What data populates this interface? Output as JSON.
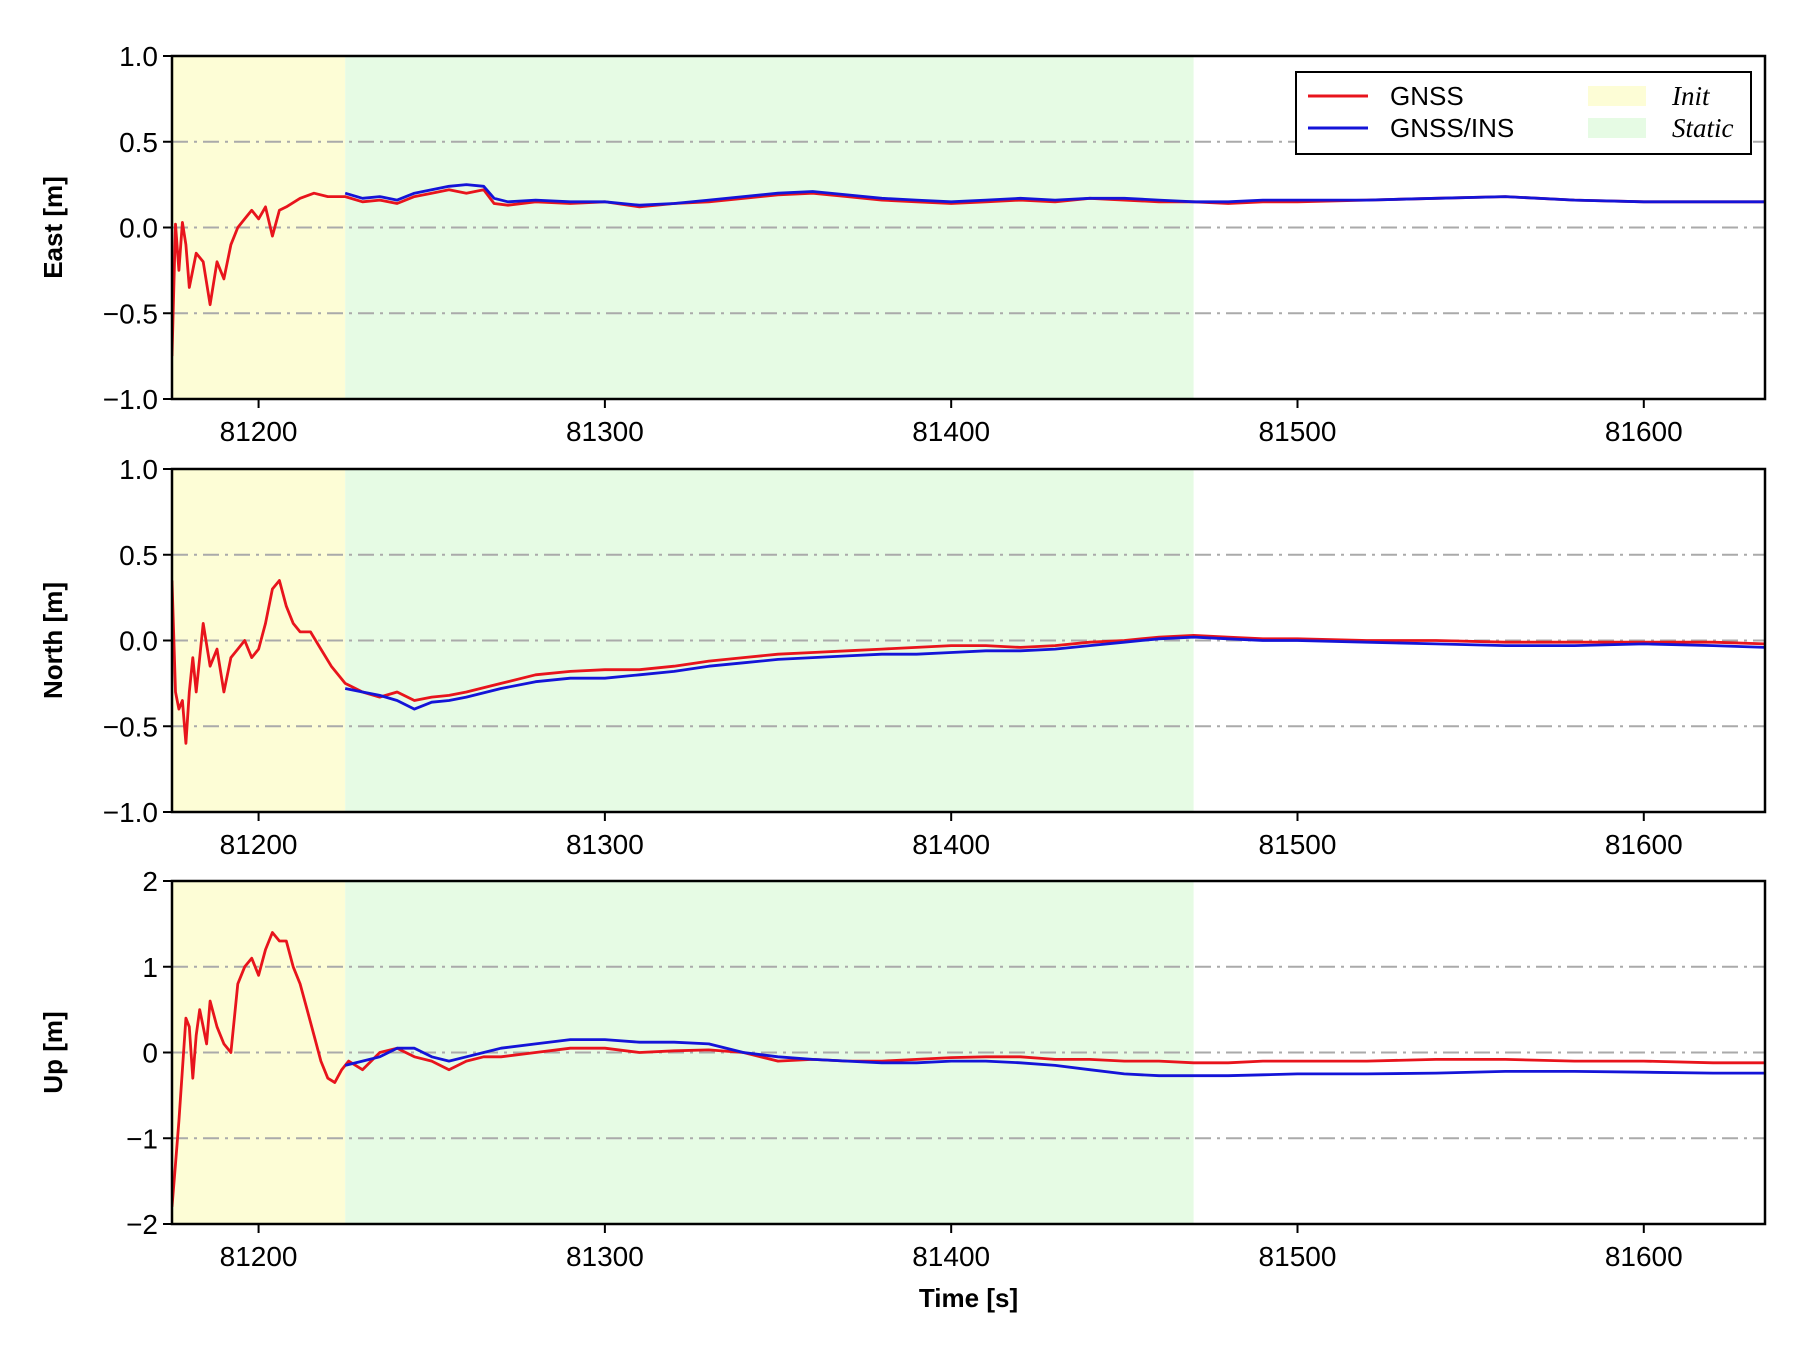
{
  "chart_data": {
    "type": "line",
    "xlabel": "Time [s]",
    "xlim": [
      81175,
      81635
    ],
    "xticks": [
      81200,
      81300,
      81400,
      81500,
      81600
    ],
    "grid": "horizontal dash-dot, gray",
    "legend": {
      "placement": "top-right of first panel",
      "lines": [
        {
          "name": "GNSS",
          "color": "#e8141c"
        },
        {
          "name": "GNSS/INS",
          "color": "#1414d8"
        }
      ],
      "regions": [
        {
          "name": "Init",
          "color": "#fdfdd6"
        },
        {
          "name": "Static",
          "color": "#e6fbe4"
        }
      ]
    },
    "regions": [
      {
        "name": "Init",
        "x": [
          81175,
          81225
        ]
      },
      {
        "name": "Static",
        "x": [
          81225,
          81470
        ]
      }
    ],
    "panels": [
      {
        "ylabel": "East [m]",
        "ylim": [
          -1.0,
          1.0
        ],
        "yticks": [
          -1.0,
          -0.5,
          0.0,
          0.5,
          1.0
        ],
        "ytick_labels": [
          "−1.0",
          "−0.5",
          "0.0",
          "0.5",
          "1.0"
        ],
        "series": [
          {
            "name": "GNSS",
            "color": "#e8141c",
            "x": [
              81175,
              81176,
              81177,
              81178,
              81179,
              81180,
              81182,
              81184,
              81186,
              81188,
              81190,
              81192,
              81194,
              81196,
              81198,
              81200,
              81202,
              81204,
              81206,
              81208,
              81212,
              81216,
              81220,
              81225,
              81230,
              81235,
              81240,
              81245,
              81250,
              81255,
              81260,
              81265,
              81268,
              81272,
              81280,
              81290,
              81300,
              81310,
              81320,
              81330,
              81340,
              81350,
              81360,
              81370,
              81380,
              81390,
              81400,
              81410,
              81420,
              81430,
              81440,
              81450,
              81460,
              81470,
              81480,
              81490,
              81500,
              81520,
              81540,
              81560,
              81580,
              81600,
              81620,
              81635
            ],
            "y": [
              -0.75,
              0.02,
              -0.25,
              0.03,
              -0.1,
              -0.35,
              -0.15,
              -0.2,
              -0.45,
              -0.2,
              -0.3,
              -0.1,
              0.0,
              0.05,
              0.1,
              0.05,
              0.12,
              -0.05,
              0.1,
              0.12,
              0.17,
              0.2,
              0.18,
              0.18,
              0.15,
              0.16,
              0.14,
              0.18,
              0.2,
              0.22,
              0.2,
              0.22,
              0.14,
              0.13,
              0.15,
              0.14,
              0.15,
              0.12,
              0.14,
              0.15,
              0.17,
              0.19,
              0.2,
              0.18,
              0.16,
              0.15,
              0.14,
              0.15,
              0.16,
              0.15,
              0.17,
              0.16,
              0.15,
              0.15,
              0.14,
              0.15,
              0.15,
              0.16,
              0.17,
              0.18,
              0.16,
              0.15,
              0.15,
              0.15
            ]
          },
          {
            "name": "GNSS/INS",
            "color": "#1414d8",
            "x": [
              81225,
              81230,
              81235,
              81240,
              81245,
              81250,
              81255,
              81260,
              81265,
              81268,
              81272,
              81280,
              81290,
              81300,
              81310,
              81320,
              81330,
              81340,
              81350,
              81360,
              81370,
              81380,
              81390,
              81400,
              81410,
              81420,
              81430,
              81440,
              81450,
              81460,
              81470,
              81480,
              81490,
              81500,
              81520,
              81540,
              81560,
              81580,
              81600,
              81620,
              81635
            ],
            "y": [
              0.2,
              0.17,
              0.18,
              0.16,
              0.2,
              0.22,
              0.24,
              0.25,
              0.24,
              0.17,
              0.15,
              0.16,
              0.15,
              0.15,
              0.13,
              0.14,
              0.16,
              0.18,
              0.2,
              0.21,
              0.19,
              0.17,
              0.16,
              0.15,
              0.16,
              0.17,
              0.16,
              0.17,
              0.17,
              0.16,
              0.15,
              0.15,
              0.16,
              0.16,
              0.16,
              0.17,
              0.18,
              0.16,
              0.15,
              0.15,
              0.15
            ]
          }
        ]
      },
      {
        "ylabel": "North [m]",
        "ylim": [
          -1.0,
          1.0
        ],
        "yticks": [
          -1.0,
          -0.5,
          0.0,
          0.5,
          1.0
        ],
        "ytick_labels": [
          "−1.0",
          "−0.5",
          "0.0",
          "0.5",
          "1.0"
        ],
        "series": [
          {
            "name": "GNSS",
            "color": "#e8141c",
            "x": [
              81175,
              81176,
              81177,
              81178,
              81179,
              81180,
              81181,
              81182,
              81184,
              81186,
              81188,
              81190,
              81192,
              81194,
              81196,
              81198,
              81200,
              81202,
              81204,
              81206,
              81208,
              81210,
              81212,
              81215,
              81218,
              81221,
              81225,
              81230,
              81235,
              81240,
              81245,
              81250,
              81255,
              81260,
              81270,
              81280,
              81290,
              81300,
              81310,
              81320,
              81330,
              81340,
              81350,
              81360,
              81370,
              81380,
              81390,
              81400,
              81410,
              81420,
              81430,
              81440,
              81450,
              81460,
              81470,
              81480,
              81490,
              81500,
              81520,
              81540,
              81560,
              81580,
              81600,
              81620,
              81635
            ],
            "y": [
              0.35,
              -0.3,
              -0.4,
              -0.35,
              -0.6,
              -0.3,
              -0.1,
              -0.3,
              0.1,
              -0.15,
              -0.05,
              -0.3,
              -0.1,
              -0.05,
              0.0,
              -0.1,
              -0.05,
              0.1,
              0.3,
              0.35,
              0.2,
              0.1,
              0.05,
              0.05,
              -0.05,
              -0.15,
              -0.25,
              -0.3,
              -0.33,
              -0.3,
              -0.35,
              -0.33,
              -0.32,
              -0.3,
              -0.25,
              -0.2,
              -0.18,
              -0.17,
              -0.17,
              -0.15,
              -0.12,
              -0.1,
              -0.08,
              -0.07,
              -0.06,
              -0.05,
              -0.04,
              -0.03,
              -0.03,
              -0.04,
              -0.03,
              -0.01,
              0.0,
              0.02,
              0.03,
              0.02,
              0.01,
              0.01,
              0.0,
              0.0,
              -0.01,
              -0.01,
              -0.01,
              -0.01,
              -0.02
            ]
          },
          {
            "name": "GNSS/INS",
            "color": "#1414d8",
            "x": [
              81225,
              81230,
              81235,
              81240,
              81245,
              81250,
              81255,
              81260,
              81270,
              81280,
              81290,
              81300,
              81310,
              81320,
              81330,
              81340,
              81350,
              81360,
              81370,
              81380,
              81390,
              81400,
              81410,
              81420,
              81430,
              81440,
              81450,
              81460,
              81470,
              81480,
              81490,
              81500,
              81520,
              81540,
              81560,
              81580,
              81600,
              81620,
              81635
            ],
            "y": [
              -0.28,
              -0.3,
              -0.32,
              -0.35,
              -0.4,
              -0.36,
              -0.35,
              -0.33,
              -0.28,
              -0.24,
              -0.22,
              -0.22,
              -0.2,
              -0.18,
              -0.15,
              -0.13,
              -0.11,
              -0.1,
              -0.09,
              -0.08,
              -0.08,
              -0.07,
              -0.06,
              -0.06,
              -0.05,
              -0.03,
              -0.01,
              0.01,
              0.02,
              0.01,
              0.0,
              0.0,
              -0.01,
              -0.02,
              -0.03,
              -0.03,
              -0.02,
              -0.03,
              -0.04
            ]
          }
        ]
      },
      {
        "ylabel": "Up [m]",
        "ylim": [
          -2,
          2
        ],
        "yticks": [
          -2,
          -1,
          0,
          1,
          2
        ],
        "ytick_labels": [
          "−2",
          "−1",
          "0",
          "1",
          "2"
        ],
        "series": [
          {
            "name": "GNSS",
            "color": "#e8141c",
            "x": [
              81175,
              81176,
              81177,
              81178,
              81179,
              81180,
              81181,
              81182,
              81183,
              81184,
              81185,
              81186,
              81188,
              81190,
              81192,
              81194,
              81196,
              81198,
              81200,
              81202,
              81204,
              81206,
              81208,
              81210,
              81212,
              81214,
              81216,
              81218,
              81220,
              81222,
              81224,
              81226,
              81230,
              81235,
              81240,
              81245,
              81250,
              81255,
              81260,
              81265,
              81270,
              81280,
              81290,
              81300,
              81310,
              81320,
              81330,
              81340,
              81350,
              81360,
              81370,
              81380,
              81390,
              81400,
              81410,
              81420,
              81430,
              81440,
              81450,
              81460,
              81470,
              81480,
              81490,
              81500,
              81520,
              81540,
              81560,
              81580,
              81600,
              81620,
              81635
            ],
            "y": [
              -1.8,
              -1.3,
              -0.8,
              -0.2,
              0.4,
              0.3,
              -0.3,
              0.2,
              0.5,
              0.3,
              0.1,
              0.6,
              0.3,
              0.1,
              0.0,
              0.8,
              1.0,
              1.1,
              0.9,
              1.2,
              1.4,
              1.3,
              1.3,
              1.0,
              0.8,
              0.5,
              0.2,
              -0.1,
              -0.3,
              -0.35,
              -0.2,
              -0.1,
              -0.2,
              0.0,
              0.05,
              -0.05,
              -0.1,
              -0.2,
              -0.1,
              -0.05,
              -0.05,
              0.0,
              0.05,
              0.05,
              0.0,
              0.02,
              0.03,
              0.0,
              -0.1,
              -0.08,
              -0.1,
              -0.1,
              -0.08,
              -0.06,
              -0.05,
              -0.05,
              -0.08,
              -0.08,
              -0.1,
              -0.1,
              -0.12,
              -0.12,
              -0.1,
              -0.1,
              -0.1,
              -0.08,
              -0.08,
              -0.1,
              -0.1,
              -0.12,
              -0.12
            ]
          },
          {
            "name": "GNSS/INS",
            "color": "#1414d8",
            "x": [
              81225,
              81230,
              81235,
              81240,
              81245,
              81250,
              81255,
              81260,
              81265,
              81270,
              81280,
              81290,
              81300,
              81310,
              81320,
              81330,
              81340,
              81350,
              81360,
              81370,
              81380,
              81390,
              81400,
              81410,
              81420,
              81430,
              81440,
              81450,
              81460,
              81470,
              81480,
              81490,
              81500,
              81520,
              81540,
              81560,
              81580,
              81600,
              81620,
              81635
            ],
            "y": [
              -0.15,
              -0.1,
              -0.05,
              0.05,
              0.05,
              -0.05,
              -0.1,
              -0.05,
              0.0,
              0.05,
              0.1,
              0.15,
              0.15,
              0.12,
              0.12,
              0.1,
              0.0,
              -0.05,
              -0.08,
              -0.1,
              -0.12,
              -0.12,
              -0.1,
              -0.1,
              -0.12,
              -0.15,
              -0.2,
              -0.25,
              -0.27,
              -0.27,
              -0.27,
              -0.26,
              -0.25,
              -0.25,
              -0.24,
              -0.22,
              -0.22,
              -0.23,
              -0.24,
              -0.24
            ]
          }
        ]
      }
    ]
  }
}
